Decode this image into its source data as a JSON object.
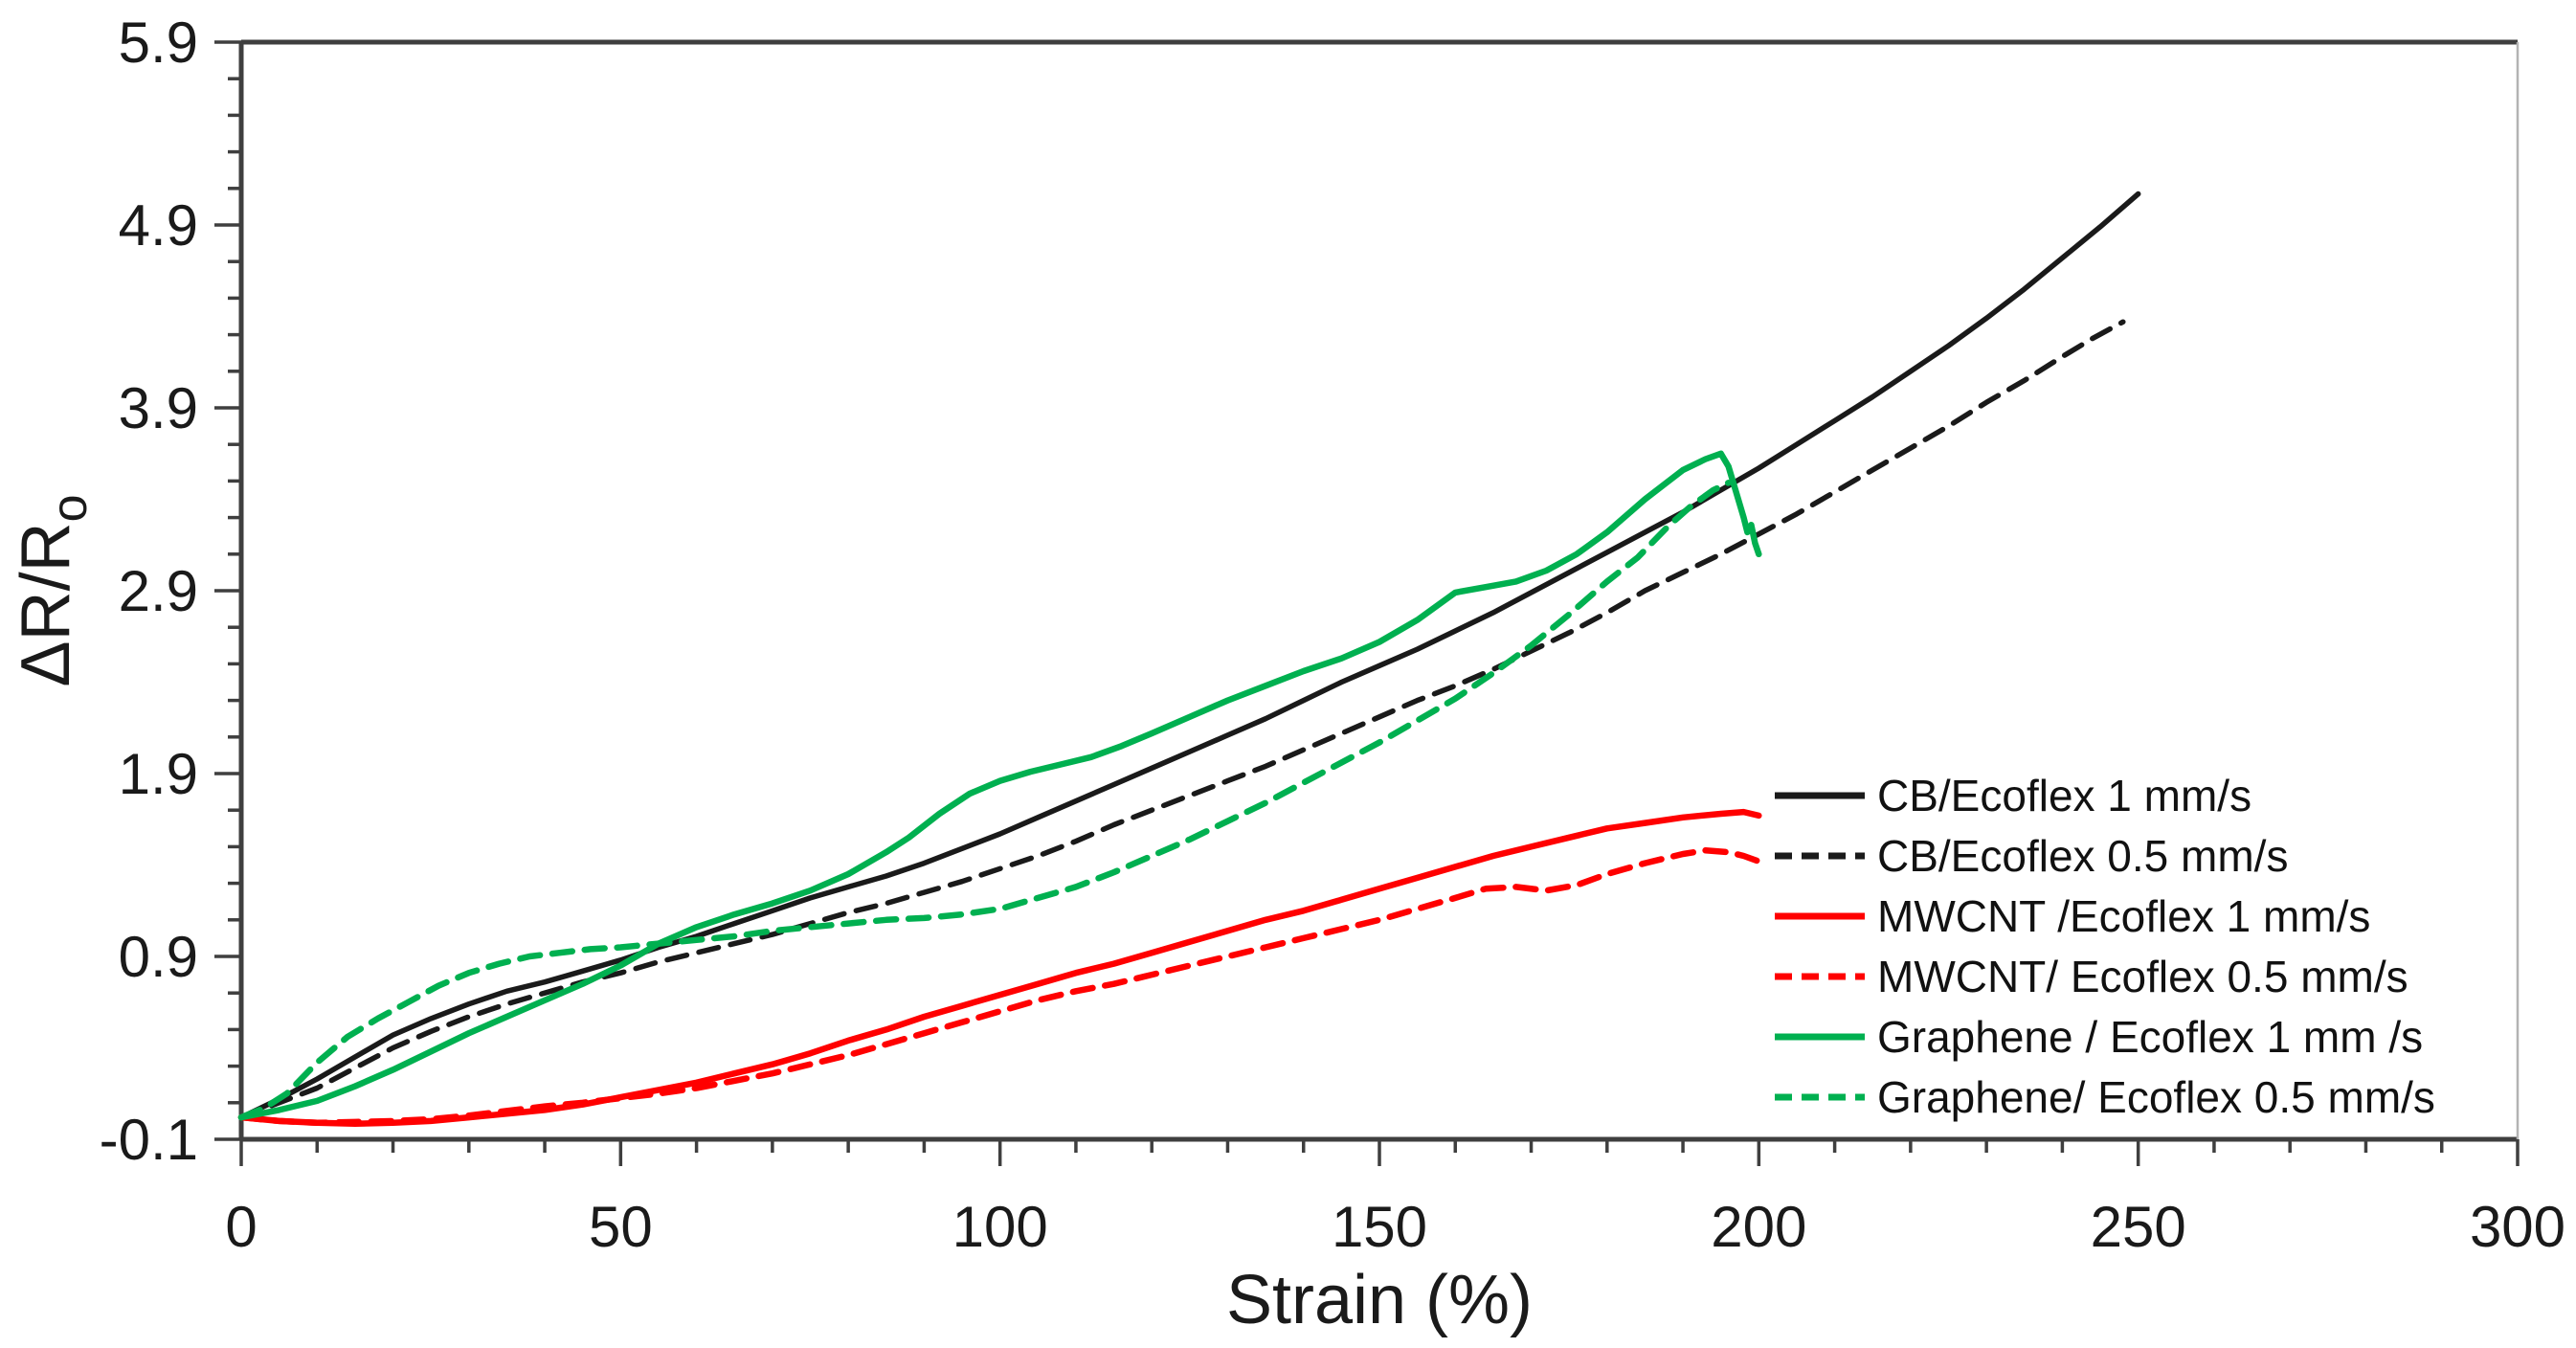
{
  "figure": {
    "background": "#ffffff",
    "title": ""
  },
  "axes": {
    "x": {
      "label": "Strain (%)",
      "min": 0,
      "max": 300,
      "major_ticks": [
        {
          "value": 0,
          "label": "0"
        },
        {
          "value": 50,
          "label": "50"
        },
        {
          "value": 100,
          "label": "100"
        },
        {
          "value": 150,
          "label": "150"
        },
        {
          "value": 200,
          "label": "200"
        },
        {
          "value": 250,
          "label": "250"
        },
        {
          "value": 300,
          "label": "300"
        }
      ],
      "minor_step": 10
    },
    "y": {
      "label": "ΔR/R",
      "label_sub": "o",
      "min": -0.1,
      "max": 5.9,
      "major_ticks": [
        {
          "value": -0.1,
          "label": "-0.1"
        },
        {
          "value": 0.9,
          "label": "0.9"
        },
        {
          "value": 1.9,
          "label": "1.9"
        },
        {
          "value": 2.9,
          "label": "2.9"
        },
        {
          "value": 3.9,
          "label": "3.9"
        },
        {
          "value": 4.9,
          "label": "4.9"
        },
        {
          "value": 5.9,
          "label": "5.9"
        }
      ],
      "minor_step": 0.2
    },
    "axis_color": "#3f3f3f",
    "right_border_color": "#b3b3b3",
    "tick_label_color": "#1a1a1a"
  },
  "chart_data": {
    "type": "line",
    "title": "",
    "xlabel": "Strain (%)",
    "ylabel": "ΔR/Ro",
    "xlim": [
      0,
      300
    ],
    "ylim": [
      -0.1,
      5.9
    ],
    "grid": false,
    "legend_position": "inside lower right",
    "series": [
      {
        "name": "CB/Ecoflex 1 mm/s",
        "color": "#1a1a1a",
        "style": "solid",
        "stroke_width": 5.5,
        "points": [
          [
            0,
            0.02
          ],
          [
            5,
            0.12
          ],
          [
            10,
            0.23
          ],
          [
            15,
            0.35
          ],
          [
            20,
            0.47
          ],
          [
            25,
            0.56
          ],
          [
            30,
            0.64
          ],
          [
            35,
            0.71
          ],
          [
            40,
            0.76
          ],
          [
            45,
            0.82
          ],
          [
            50,
            0.88
          ],
          [
            55,
            0.95
          ],
          [
            60,
            1.01
          ],
          [
            65,
            1.08
          ],
          [
            70,
            1.15
          ],
          [
            75,
            1.22
          ],
          [
            80,
            1.28
          ],
          [
            85,
            1.34
          ],
          [
            90,
            1.41
          ],
          [
            95,
            1.49
          ],
          [
            100,
            1.57
          ],
          [
            105,
            1.66
          ],
          [
            110,
            1.75
          ],
          [
            115,
            1.84
          ],
          [
            120,
            1.93
          ],
          [
            125,
            2.02
          ],
          [
            130,
            2.11
          ],
          [
            135,
            2.2
          ],
          [
            140,
            2.3
          ],
          [
            145,
            2.4
          ],
          [
            150,
            2.49
          ],
          [
            155,
            2.58
          ],
          [
            160,
            2.68
          ],
          [
            165,
            2.78
          ],
          [
            170,
            2.89
          ],
          [
            175,
            3.0
          ],
          [
            180,
            3.11
          ],
          [
            185,
            3.22
          ],
          [
            190,
            3.33
          ],
          [
            195,
            3.45
          ],
          [
            200,
            3.57
          ],
          [
            205,
            3.7
          ],
          [
            210,
            3.83
          ],
          [
            215,
            3.96
          ],
          [
            220,
            4.1
          ],
          [
            225,
            4.24
          ],
          [
            230,
            4.39
          ],
          [
            235,
            4.55
          ],
          [
            240,
            4.72
          ],
          [
            245,
            4.89
          ],
          [
            250,
            5.07
          ]
        ]
      },
      {
        "name": "CB/Ecoflex 0.5 mm/s",
        "color": "#1a1a1a",
        "style": "dashed",
        "stroke_width": 5.5,
        "points": [
          [
            0,
            0.02
          ],
          [
            5,
            0.1
          ],
          [
            10,
            0.18
          ],
          [
            15,
            0.29
          ],
          [
            20,
            0.4
          ],
          [
            25,
            0.49
          ],
          [
            30,
            0.57
          ],
          [
            35,
            0.64
          ],
          [
            40,
            0.7
          ],
          [
            45,
            0.76
          ],
          [
            50,
            0.81
          ],
          [
            55,
            0.87
          ],
          [
            60,
            0.92
          ],
          [
            65,
            0.97
          ],
          [
            70,
            1.02
          ],
          [
            75,
            1.08
          ],
          [
            80,
            1.14
          ],
          [
            85,
            1.19
          ],
          [
            90,
            1.25
          ],
          [
            95,
            1.31
          ],
          [
            100,
            1.38
          ],
          [
            105,
            1.45
          ],
          [
            110,
            1.53
          ],
          [
            115,
            1.62
          ],
          [
            120,
            1.7
          ],
          [
            125,
            1.78
          ],
          [
            130,
            1.86
          ],
          [
            135,
            1.94
          ],
          [
            140,
            2.03
          ],
          [
            145,
            2.12
          ],
          [
            150,
            2.21
          ],
          [
            155,
            2.3
          ],
          [
            160,
            2.38
          ],
          [
            165,
            2.47
          ],
          [
            170,
            2.57
          ],
          [
            175,
            2.67
          ],
          [
            180,
            2.78
          ],
          [
            185,
            2.9
          ],
          [
            190,
            3.0
          ],
          [
            195,
            3.1
          ],
          [
            200,
            3.21
          ],
          [
            205,
            3.32
          ],
          [
            210,
            3.44
          ],
          [
            215,
            3.56
          ],
          [
            220,
            3.68
          ],
          [
            225,
            3.8
          ],
          [
            230,
            3.93
          ],
          [
            235,
            4.05
          ],
          [
            240,
            4.18
          ],
          [
            244,
            4.28
          ],
          [
            248,
            4.37
          ]
        ]
      },
      {
        "name": "MWCNT /Ecoflex 1 mm/s",
        "color": "#ff0000",
        "style": "solid",
        "stroke_width": 6.5,
        "points": [
          [
            0,
            0.02
          ],
          [
            5,
            0.0
          ],
          [
            10,
            -0.01
          ],
          [
            15,
            -0.015
          ],
          [
            20,
            -0.01
          ],
          [
            25,
            0.0
          ],
          [
            30,
            0.02
          ],
          [
            35,
            0.04
          ],
          [
            40,
            0.06
          ],
          [
            45,
            0.09
          ],
          [
            50,
            0.13
          ],
          [
            55,
            0.17
          ],
          [
            60,
            0.21
          ],
          [
            65,
            0.26
          ],
          [
            70,
            0.31
          ],
          [
            75,
            0.37
          ],
          [
            80,
            0.44
          ],
          [
            85,
            0.5
          ],
          [
            90,
            0.57
          ],
          [
            95,
            0.63
          ],
          [
            100,
            0.69
          ],
          [
            105,
            0.75
          ],
          [
            110,
            0.81
          ],
          [
            115,
            0.86
          ],
          [
            120,
            0.92
          ],
          [
            125,
            0.98
          ],
          [
            130,
            1.04
          ],
          [
            135,
            1.1
          ],
          [
            140,
            1.15
          ],
          [
            145,
            1.21
          ],
          [
            150,
            1.27
          ],
          [
            155,
            1.33
          ],
          [
            160,
            1.39
          ],
          [
            165,
            1.45
          ],
          [
            170,
            1.5
          ],
          [
            175,
            1.55
          ],
          [
            180,
            1.6
          ],
          [
            185,
            1.63
          ],
          [
            190,
            1.66
          ],
          [
            195,
            1.68
          ],
          [
            198,
            1.69
          ],
          [
            200,
            1.67
          ]
        ]
      },
      {
        "name": "MWCNT/ Ecoflex 0.5 mm/s",
        "color": "#ff0000",
        "style": "dashed",
        "stroke_width": 6.5,
        "points": [
          [
            0,
            0.02
          ],
          [
            5,
            0.0
          ],
          [
            10,
            -0.01
          ],
          [
            15,
            -0.005
          ],
          [
            20,
            0.0
          ],
          [
            25,
            0.01
          ],
          [
            30,
            0.03
          ],
          [
            35,
            0.055
          ],
          [
            40,
            0.08
          ],
          [
            45,
            0.1
          ],
          [
            50,
            0.125
          ],
          [
            55,
            0.15
          ],
          [
            60,
            0.18
          ],
          [
            65,
            0.22
          ],
          [
            70,
            0.26
          ],
          [
            75,
            0.31
          ],
          [
            80,
            0.36
          ],
          [
            85,
            0.42
          ],
          [
            90,
            0.48
          ],
          [
            95,
            0.54
          ],
          [
            100,
            0.6
          ],
          [
            105,
            0.66
          ],
          [
            110,
            0.71
          ],
          [
            115,
            0.75
          ],
          [
            120,
            0.8
          ],
          [
            125,
            0.85
          ],
          [
            130,
            0.9
          ],
          [
            135,
            0.95
          ],
          [
            140,
            1.0
          ],
          [
            145,
            1.05
          ],
          [
            150,
            1.1
          ],
          [
            155,
            1.16
          ],
          [
            160,
            1.22
          ],
          [
            164,
            1.27
          ],
          [
            168,
            1.28
          ],
          [
            172,
            1.26
          ],
          [
            176,
            1.29
          ],
          [
            180,
            1.35
          ],
          [
            185,
            1.41
          ],
          [
            190,
            1.46
          ],
          [
            193,
            1.48
          ],
          [
            196,
            1.47
          ],
          [
            198,
            1.45
          ],
          [
            200,
            1.42
          ]
        ]
      },
      {
        "name": "Graphene / Ecoflex 1 mm /s",
        "color": "#00b050",
        "style": "solid",
        "stroke_width": 6.5,
        "points": [
          [
            0,
            0.02
          ],
          [
            5,
            0.06
          ],
          [
            10,
            0.11
          ],
          [
            15,
            0.19
          ],
          [
            20,
            0.28
          ],
          [
            25,
            0.38
          ],
          [
            30,
            0.48
          ],
          [
            35,
            0.57
          ],
          [
            40,
            0.66
          ],
          [
            45,
            0.75
          ],
          [
            50,
            0.85
          ],
          [
            55,
            0.97
          ],
          [
            60,
            1.06
          ],
          [
            65,
            1.13
          ],
          [
            70,
            1.19
          ],
          [
            75,
            1.26
          ],
          [
            80,
            1.35
          ],
          [
            85,
            1.47
          ],
          [
            88,
            1.55
          ],
          [
            92,
            1.68
          ],
          [
            96,
            1.79
          ],
          [
            100,
            1.86
          ],
          [
            104,
            1.91
          ],
          [
            108,
            1.95
          ],
          [
            112,
            1.99
          ],
          [
            116,
            2.05
          ],
          [
            120,
            2.12
          ],
          [
            125,
            2.21
          ],
          [
            130,
            2.3
          ],
          [
            135,
            2.38
          ],
          [
            140,
            2.46
          ],
          [
            145,
            2.53
          ],
          [
            150,
            2.62
          ],
          [
            155,
            2.74
          ],
          [
            160,
            2.89
          ],
          [
            164,
            2.92
          ],
          [
            168,
            2.95
          ],
          [
            172,
            3.01
          ],
          [
            176,
            3.1
          ],
          [
            180,
            3.22
          ],
          [
            185,
            3.4
          ],
          [
            190,
            3.56
          ],
          [
            193,
            3.62
          ],
          [
            195,
            3.65
          ],
          [
            196,
            3.58
          ],
          [
            197,
            3.44
          ],
          [
            198,
            3.3
          ],
          [
            198.5,
            3.22
          ],
          [
            199,
            3.26
          ],
          [
            199.5,
            3.16
          ],
          [
            200,
            3.1
          ]
        ]
      },
      {
        "name": "Graphene/ Ecoflex 0.5 mm/s",
        "color": "#00b050",
        "style": "dashed",
        "stroke_width": 6.5,
        "points": [
          [
            0,
            0.02
          ],
          [
            3,
            0.07
          ],
          [
            6,
            0.15
          ],
          [
            10,
            0.32
          ],
          [
            14,
            0.46
          ],
          [
            18,
            0.56
          ],
          [
            22,
            0.65
          ],
          [
            26,
            0.74
          ],
          [
            30,
            0.81
          ],
          [
            34,
            0.86
          ],
          [
            38,
            0.9
          ],
          [
            42,
            0.92
          ],
          [
            46,
            0.94
          ],
          [
            50,
            0.95
          ],
          [
            55,
            0.97
          ],
          [
            60,
            0.99
          ],
          [
            65,
            1.01
          ],
          [
            70,
            1.04
          ],
          [
            75,
            1.06
          ],
          [
            80,
            1.08
          ],
          [
            85,
            1.1
          ],
          [
            90,
            1.11
          ],
          [
            95,
            1.13
          ],
          [
            100,
            1.16
          ],
          [
            105,
            1.22
          ],
          [
            110,
            1.28
          ],
          [
            115,
            1.36
          ],
          [
            120,
            1.45
          ],
          [
            125,
            1.54
          ],
          [
            130,
            1.64
          ],
          [
            135,
            1.74
          ],
          [
            140,
            1.85
          ],
          [
            145,
            1.96
          ],
          [
            150,
            2.07
          ],
          [
            155,
            2.19
          ],
          [
            160,
            2.31
          ],
          [
            165,
            2.45
          ],
          [
            170,
            2.6
          ],
          [
            175,
            2.77
          ],
          [
            180,
            2.95
          ],
          [
            184,
            3.08
          ],
          [
            188,
            3.25
          ],
          [
            191,
            3.36
          ],
          [
            194,
            3.45
          ],
          [
            196,
            3.49
          ]
        ]
      }
    ]
  }
}
